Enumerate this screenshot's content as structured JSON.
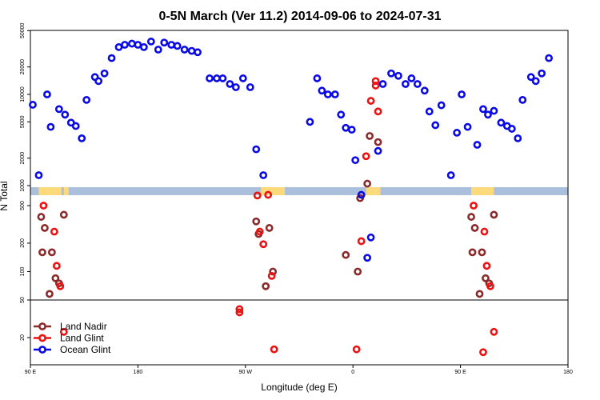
{
  "chart_data": {
    "type": "scatter",
    "title": "0-5N March (Ver 11.2)   2014-09-06 to 2024-07-31",
    "xlabel": "Longitude (deg E)",
    "ylabel": "N Total",
    "x_ticks": [
      {
        "value": 90,
        "label": "90 E"
      },
      {
        "value": 180,
        "label": "180"
      },
      {
        "value": 270,
        "label": "90 W"
      },
      {
        "value": 360,
        "label": "0"
      },
      {
        "value": 450,
        "label": "90 E"
      },
      {
        "value": 540,
        "label": "180"
      }
    ],
    "xlim": [
      90,
      540
    ],
    "y_ticks_upper": [
      "1000",
      "2000",
      "5000",
      "10000",
      "20000",
      "50000"
    ],
    "y_ticks_lower": [
      "20",
      "50",
      "100",
      "200",
      "500"
    ],
    "y_ticks_lower_positions": [
      20,
      50,
      100,
      200,
      500
    ],
    "ylim_lower": [
      10,
      800
    ],
    "ylim_upper": [
      800,
      60000
    ],
    "scale": "log",
    "legend": {
      "position": "bottom-left"
    },
    "land_band_color": "#fcd97a",
    "ocean_band_color": "#a9bfdc",
    "series": [
      {
        "name": "Land Nadir",
        "color": "#8b2a2a",
        "points": [
          [
            99,
            380
          ],
          [
            100,
            160
          ],
          [
            102,
            290
          ],
          [
            106,
            58
          ],
          [
            108,
            160
          ],
          [
            111,
            85
          ],
          [
            114,
            75
          ],
          [
            118,
            400
          ],
          [
            279,
            340
          ],
          [
            281,
            250
          ],
          [
            287,
            70
          ],
          [
            290,
            290
          ],
          [
            293,
            100
          ],
          [
            354,
            150
          ],
          [
            364,
            100
          ],
          [
            366,
            600
          ],
          [
            372,
            1050
          ],
          [
            374,
            3500
          ],
          [
            381,
            3000
          ],
          [
            459,
            380
          ],
          [
            460,
            160
          ],
          [
            462,
            290
          ],
          [
            466,
            58
          ],
          [
            468,
            160
          ],
          [
            471,
            85
          ],
          [
            474,
            75
          ],
          [
            478,
            400
          ]
        ]
      },
      {
        "name": "Land Glint",
        "color": "#ee1111",
        "points": [
          [
            101,
            500
          ],
          [
            110,
            265
          ],
          [
            112,
            115
          ],
          [
            115,
            70
          ],
          [
            118,
            23
          ],
          [
            265,
            37
          ],
          [
            265,
            40
          ],
          [
            280,
            640
          ],
          [
            282,
            265
          ],
          [
            285,
            195
          ],
          [
            289,
            650
          ],
          [
            292,
            90
          ],
          [
            294,
            15
          ],
          [
            363,
            15
          ],
          [
            367,
            210
          ],
          [
            371,
            2100
          ],
          [
            375,
            8500
          ],
          [
            379,
            14000
          ],
          [
            379,
            12500
          ],
          [
            381,
            6500
          ],
          [
            461,
            500
          ],
          [
            469,
            14
          ],
          [
            470,
            265
          ],
          [
            472,
            115
          ],
          [
            475,
            70
          ],
          [
            478,
            23
          ]
        ]
      },
      {
        "name": "Ocean Glint",
        "color": "#0a0ae6",
        "points": [
          [
            92,
            7700
          ],
          [
            97,
            1300
          ],
          [
            104,
            10000
          ],
          [
            107,
            4400
          ],
          [
            114,
            6900
          ],
          [
            119,
            6000
          ],
          [
            124,
            4900
          ],
          [
            128,
            4500
          ],
          [
            133,
            3300
          ],
          [
            137,
            8700
          ],
          [
            144,
            15500
          ],
          [
            147,
            14000
          ],
          [
            152,
            17000
          ],
          [
            158,
            25000
          ],
          [
            164,
            33000
          ],
          [
            169,
            35000
          ],
          [
            175,
            36000
          ],
          [
            180,
            35000
          ],
          [
            185,
            33000
          ],
          [
            191,
            38000
          ],
          [
            197,
            31000
          ],
          [
            202,
            37000
          ],
          [
            208,
            35000
          ],
          [
            213,
            34000
          ],
          [
            219,
            31000
          ],
          [
            225,
            30000
          ],
          [
            230,
            29000
          ],
          [
            240,
            15000
          ],
          [
            246,
            15000
          ],
          [
            251,
            15000
          ],
          [
            257,
            13000
          ],
          [
            262,
            12000
          ],
          [
            268,
            15000
          ],
          [
            274,
            12000
          ],
          [
            279,
            2500
          ],
          [
            285,
            1300
          ],
          [
            324,
            5000
          ],
          [
            330,
            15000
          ],
          [
            334,
            11000
          ],
          [
            339,
            10000
          ],
          [
            345,
            10000
          ],
          [
            350,
            6000
          ],
          [
            354,
            4300
          ],
          [
            359,
            4100
          ],
          [
            362,
            1900
          ],
          [
            367,
            650
          ],
          [
            372,
            140
          ],
          [
            375,
            230
          ],
          [
            381,
            2400
          ],
          [
            385,
            13000
          ],
          [
            392,
            17000
          ],
          [
            398,
            16000
          ],
          [
            404,
            13000
          ],
          [
            409,
            15000
          ],
          [
            414,
            13000
          ],
          [
            420,
            11000
          ],
          [
            424,
            6500
          ],
          [
            429,
            4600
          ],
          [
            434,
            7600
          ],
          [
            442,
            1300
          ],
          [
            447,
            3800
          ],
          [
            451,
            10000
          ],
          [
            456,
            4400
          ],
          [
            464,
            2800
          ],
          [
            469,
            6900
          ],
          [
            473,
            6000
          ],
          [
            478,
            6600
          ],
          [
            484,
            4900
          ],
          [
            489,
            4500
          ],
          [
            493,
            4200
          ],
          [
            498,
            3300
          ],
          [
            502,
            8700
          ],
          [
            509,
            15500
          ],
          [
            513,
            14000
          ],
          [
            518,
            17000
          ],
          [
            524,
            25000
          ]
        ]
      }
    ]
  }
}
